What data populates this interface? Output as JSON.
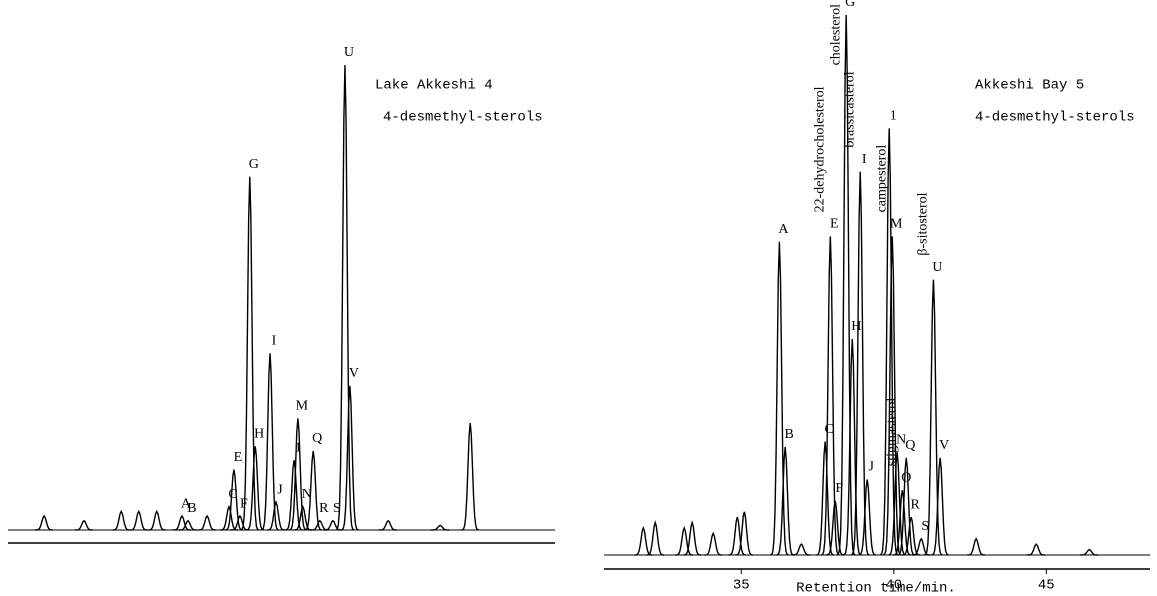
{
  "chart_data": [
    {
      "type": "chromatogram",
      "title": "Lake Akkeshi 4",
      "subtitle": "4-desmethyl-sterols",
      "xlim": [
        0,
        100
      ],
      "ylim": [
        0,
        100
      ],
      "color": "#000000",
      "peaks": [
        {
          "label": null,
          "x": 6.6,
          "height": 3
        },
        {
          "label": null,
          "x": 13.9,
          "height": 2
        },
        {
          "label": null,
          "x": 20.7,
          "height": 4
        },
        {
          "label": null,
          "x": 23.9,
          "height": 4
        },
        {
          "label": null,
          "x": 27.2,
          "height": 4
        },
        {
          "label": "A",
          "x": 31.8,
          "height": 3
        },
        {
          "label": "B",
          "x": 32.9,
          "height": 2
        },
        {
          "label": null,
          "x": 36.4,
          "height": 3
        },
        {
          "label": "C",
          "x": 40.4,
          "height": 5
        },
        {
          "label": "E",
          "x": 41.3,
          "height": 13
        },
        {
          "label": "F",
          "x": 42.4,
          "height": 3
        },
        {
          "label": "G",
          "x": 44.2,
          "height": 76
        },
        {
          "label": "H",
          "x": 45.2,
          "height": 18
        },
        {
          "label": "I",
          "x": 47.9,
          "height": 38
        },
        {
          "label": "J",
          "x": 49.0,
          "height": 6
        },
        {
          "label": "1",
          "x": 52.3,
          "height": 15
        },
        {
          "label": "M",
          "x": 53.0,
          "height": 24
        },
        {
          "label": "N",
          "x": 53.9,
          "height": 5
        },
        {
          "label": "Q",
          "x": 55.8,
          "height": 17
        },
        {
          "label": "R",
          "x": 57.0,
          "height": 2
        },
        {
          "label": "S",
          "x": 59.4,
          "height": 2
        },
        {
          "label": "U",
          "x": 61.6,
          "height": 100
        },
        {
          "label": "V",
          "x": 62.5,
          "height": 31
        },
        {
          "label": null,
          "x": 69.5,
          "height": 2
        },
        {
          "label": null,
          "x": 79.0,
          "height": 1
        },
        {
          "label": null,
          "x": 84.5,
          "height": 23
        }
      ]
    },
    {
      "type": "chromatogram",
      "title": "Akkeshi Bay 5",
      "subtitle": "4-desmethyl-sterols",
      "x_label": "Retention time/min.",
      "xlim": [
        30.5,
        48.4
      ],
      "xticks": [
        35,
        40,
        45
      ],
      "ylim": [
        0,
        100
      ],
      "color": "#000000",
      "peaks": [
        {
          "label": null,
          "x": 31.79,
          "height": 5
        },
        {
          "label": null,
          "x": 32.18,
          "height": 6
        },
        {
          "label": null,
          "x": 33.13,
          "height": 5
        },
        {
          "label": null,
          "x": 33.39,
          "height": 6
        },
        {
          "label": null,
          "x": 34.08,
          "height": 4
        },
        {
          "label": null,
          "x": 34.87,
          "height": 7
        },
        {
          "label": null,
          "x": 35.1,
          "height": 8
        },
        {
          "label": "A",
          "x": 36.25,
          "height": 58
        },
        {
          "label": "B",
          "x": 36.44,
          "height": 20
        },
        {
          "label": null,
          "x": 36.97,
          "height": 2
        },
        {
          "label": "C",
          "x": 37.75,
          "height": 21
        },
        {
          "label": "E",
          "x": 37.92,
          "height": 59,
          "compound": "22-dehydrocholesterol"
        },
        {
          "label": "F",
          "x": 38.08,
          "height": 10
        },
        {
          "label": "G",
          "x": 38.44,
          "height": 100,
          "compound": "cholesterol"
        },
        {
          "label": "H",
          "x": 38.64,
          "height": 40
        },
        {
          "label": "I",
          "x": 38.9,
          "height": 71,
          "compound": "brassicasterol"
        },
        {
          "label": "J",
          "x": 39.13,
          "height": 14
        },
        {
          "label": "1",
          "x": 39.85,
          "height": 79
        },
        {
          "label": "M",
          "x": 39.95,
          "height": 59,
          "compound": "campesterol"
        },
        {
          "label": "N",
          "x": 40.11,
          "height": 19
        },
        {
          "label": "O",
          "x": 40.28,
          "height": 12,
          "compound": "stigmasterol"
        },
        {
          "label": "Q",
          "x": 40.41,
          "height": 18
        },
        {
          "label": "R",
          "x": 40.57,
          "height": 7
        },
        {
          "label": "S",
          "x": 40.9,
          "height": 3
        },
        {
          "label": "U",
          "x": 41.3,
          "height": 51,
          "compound": "β-sitosterol"
        },
        {
          "label": "V",
          "x": 41.52,
          "height": 18
        },
        {
          "label": null,
          "x": 42.7,
          "height": 3
        },
        {
          "label": null,
          "x": 44.67,
          "height": 2
        },
        {
          "label": null,
          "x": 46.41,
          "height": 1
        }
      ]
    }
  ]
}
